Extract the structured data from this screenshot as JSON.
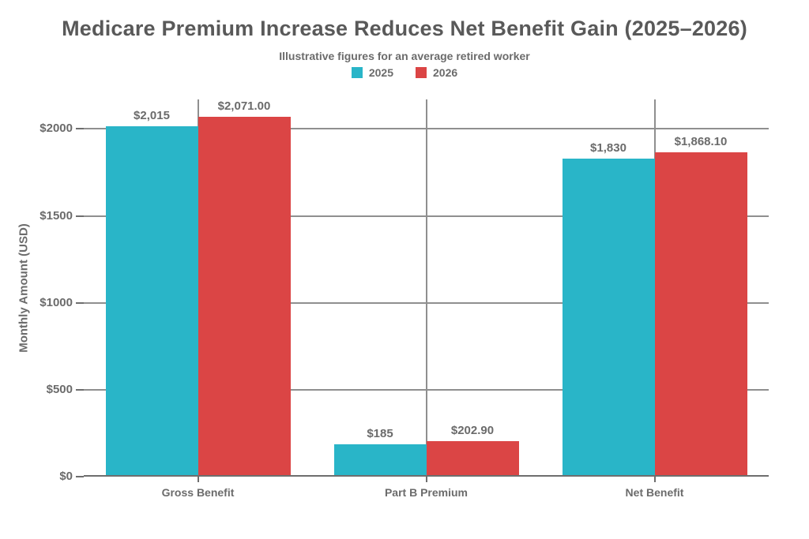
{
  "chart_data": {
    "type": "bar",
    "title": "Medicare Premium Increase Reduces Net Benefit Gain (2025–2026)",
    "subtitle": "Illustrative figures for an average retired worker",
    "categories": [
      "Gross Benefit",
      "Part B Premium",
      "Net Benefit"
    ],
    "series": [
      {
        "name": "2025",
        "color": "#29B5C8",
        "values": [
          2015,
          185,
          1830
        ],
        "labels": [
          "$2,015",
          "$185",
          "$1,830"
        ]
      },
      {
        "name": "2026",
        "color": "#DB4545",
        "values": [
          2071.0,
          202.9,
          1868.1
        ],
        "labels": [
          "$2,071.00",
          "$202.90",
          "$1,868.10"
        ]
      }
    ],
    "xlabel": "",
    "ylabel": "Monthly Amount (USD)",
    "ylim": [
      0,
      2170
    ],
    "yticks": [
      0,
      500,
      1000,
      1500,
      2000
    ],
    "ytick_labels": [
      "$0",
      "$500",
      "$1000",
      "$1500",
      "$2000"
    ],
    "grid": true,
    "legend_position": "top-center"
  },
  "colors": {
    "series_2025": "#29B5C8",
    "series_2026": "#DB4545",
    "title_text": "#595959",
    "label_text": "#6b6b6b",
    "gridline": "#8f8f8f",
    "axis": "#6e6e6e",
    "background": "#ffffff"
  }
}
